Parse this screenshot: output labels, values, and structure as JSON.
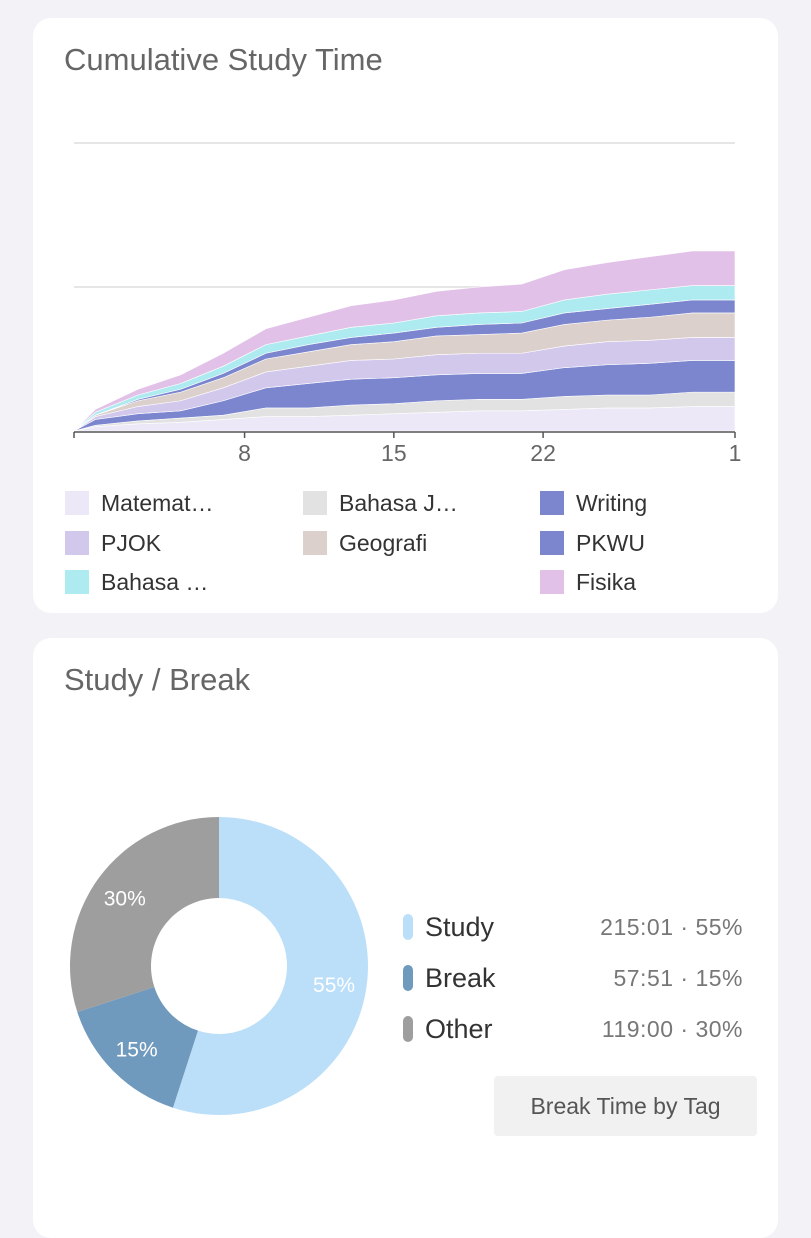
{
  "cumulative": {
    "title": "Cumulative Study Time",
    "x_tick_labels": [
      "8",
      "15",
      "22",
      "1"
    ],
    "legend": [
      {
        "label": "Matemat…",
        "color": "#ece8f7"
      },
      {
        "label": "Bahasa J…",
        "color": "#e2e2e2"
      },
      {
        "label": "Writing",
        "color": "#7b86cf"
      },
      {
        "label": "PJOK",
        "color": "#d2c8ec"
      },
      {
        "label": "Geografi",
        "color": "#dcd0cd"
      },
      {
        "label": "PKWU",
        "color": "#7b86cf"
      },
      {
        "label": "Bahasa …",
        "color": "#aeebf1"
      },
      {
        "label": "Fisika",
        "color": "#e2c1e9"
      }
    ]
  },
  "study_break": {
    "title": "Study / Break",
    "slices": [
      {
        "name": "Study",
        "percent": 55,
        "percent_label": "55%",
        "value": "215:01 · 55%",
        "color": "#bcdff9"
      },
      {
        "name": "Break",
        "percent": 15,
        "percent_label": "15%",
        "value": "57:51 · 15%",
        "color": "#6f99bd"
      },
      {
        "name": "Other",
        "percent": 30,
        "percent_label": "30%",
        "value": "119:00 · 30%",
        "color": "#9e9e9e"
      }
    ],
    "button_label": "Break Time by Tag"
  },
  "chart_data": {
    "type": "area",
    "title": "Cumulative Study Time",
    "stacked": true,
    "x": [
      1,
      3,
      5,
      7,
      9,
      11,
      13,
      15,
      17,
      19,
      21,
      23,
      25,
      27,
      29
    ],
    "x_tick_labels": [
      "8",
      "15",
      "22",
      "1"
    ],
    "xlabel": "",
    "ylabel": "",
    "grid": true,
    "series": [
      {
        "name": "Matemat…",
        "color": "#ece8f7",
        "values": [
          0.3,
          0.5,
          0.6,
          0.8,
          1.0,
          1.0,
          1.1,
          1.2,
          1.3,
          1.4,
          1.4,
          1.5,
          1.6,
          1.6,
          1.7
        ]
      },
      {
        "name": "Bahasa J…",
        "color": "#e2e2e2",
        "values": [
          0.1,
          0.2,
          0.3,
          0.3,
          0.6,
          0.6,
          0.7,
          0.7,
          0.8,
          0.8,
          0.8,
          0.9,
          0.9,
          0.9,
          1.0
        ]
      },
      {
        "name": "Writing",
        "color": "#7b86cf",
        "values": [
          0.4,
          0.5,
          0.5,
          1.0,
          1.4,
          1.7,
          1.8,
          1.8,
          1.8,
          1.8,
          1.8,
          2.0,
          2.1,
          2.2,
          2.2
        ]
      },
      {
        "name": "PJOK",
        "color": "#d2c8ec",
        "values": [
          0.2,
          0.5,
          0.7,
          0.9,
          1.1,
          1.2,
          1.3,
          1.3,
          1.4,
          1.4,
          1.4,
          1.5,
          1.6,
          1.6,
          1.6
        ]
      },
      {
        "name": "Geografi",
        "color": "#dcd0cd",
        "values": [
          0.1,
          0.4,
          0.6,
          0.7,
          0.9,
          1.0,
          1.1,
          1.2,
          1.3,
          1.3,
          1.4,
          1.5,
          1.5,
          1.6,
          1.7
        ]
      },
      {
        "name": "PKWU",
        "color": "#7b86cf",
        "values": [
          0.0,
          0.1,
          0.2,
          0.3,
          0.4,
          0.5,
          0.5,
          0.6,
          0.6,
          0.7,
          0.7,
          0.8,
          0.8,
          0.9,
          0.9
        ]
      },
      {
        "name": "Bahasa …",
        "color": "#aeebf1",
        "values": [
          0.2,
          0.3,
          0.4,
          0.5,
          0.6,
          0.6,
          0.7,
          0.7,
          0.8,
          0.8,
          0.8,
          0.9,
          1.0,
          1.0,
          1.0
        ]
      },
      {
        "name": "Fisika",
        "color": "#e2c1e9",
        "values": [
          0.2,
          0.4,
          0.6,
          0.9,
          1.1,
          1.3,
          1.5,
          1.6,
          1.7,
          1.8,
          1.9,
          2.1,
          2.2,
          2.3,
          2.4
        ]
      }
    ]
  }
}
